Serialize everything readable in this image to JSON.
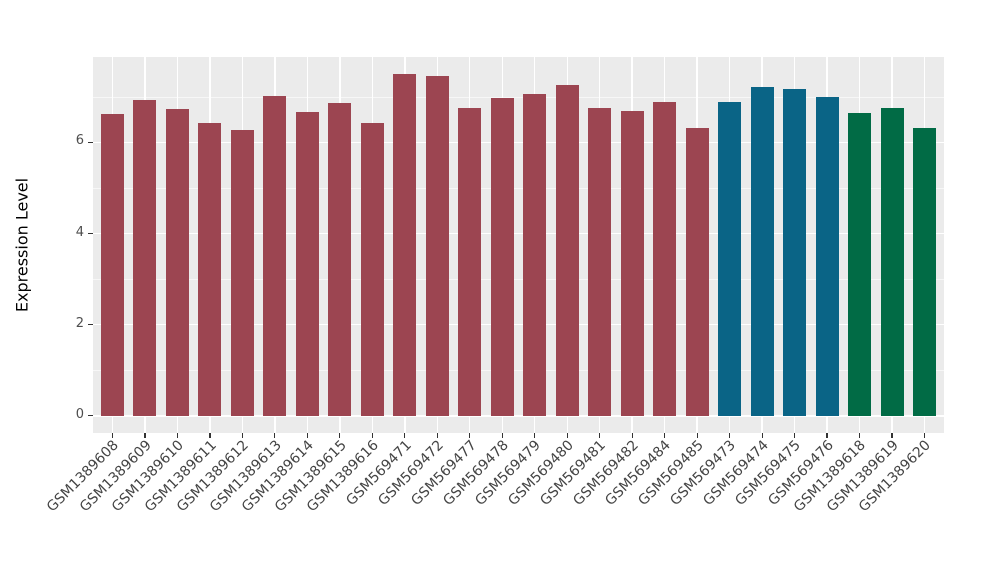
{
  "figure": {
    "background": "#FFFFFF",
    "panel_background": "#EBEBEB",
    "gridline_color": "#FFFFFF",
    "axis_text_color": "#4D4D4D",
    "tick_mark_color": "#333333"
  },
  "chart_data": {
    "type": "bar",
    "title": "",
    "xlabel": "",
    "ylabel": "Expression Level",
    "ylim": [
      0,
      7.9
    ],
    "yticks": [
      0,
      2,
      4,
      6
    ],
    "ytick_labels": [
      "0",
      "2",
      "4",
      "6"
    ],
    "minor_yticks": [
      1,
      3,
      5,
      7
    ],
    "grid": true,
    "legend": false,
    "categories": [
      "GSM1389608",
      "GSM1389609",
      "GSM1389610",
      "GSM1389611",
      "GSM1389612",
      "GSM1389613",
      "GSM1389614",
      "GSM1389615",
      "GSM1389616",
      "GSM569471",
      "GSM569472",
      "GSM569477",
      "GSM569478",
      "GSM569479",
      "GSM569480",
      "GSM569481",
      "GSM569482",
      "GSM569484",
      "GSM569485",
      "GSM569473",
      "GSM569474",
      "GSM569475",
      "GSM569476",
      "GSM1389618",
      "GSM1389619",
      "GSM1389620"
    ],
    "values": [
      6.63,
      6.94,
      6.73,
      6.43,
      6.27,
      7.02,
      6.67,
      6.87,
      6.43,
      7.5,
      7.46,
      6.75,
      6.97,
      7.06,
      7.26,
      6.76,
      6.7,
      6.88,
      6.32,
      6.88,
      7.22,
      7.17,
      7.0,
      6.64,
      6.76,
      6.31
    ],
    "colors": [
      "#9C4551",
      "#9C4551",
      "#9C4551",
      "#9C4551",
      "#9C4551",
      "#9C4551",
      "#9C4551",
      "#9C4551",
      "#9C4551",
      "#9C4551",
      "#9C4551",
      "#9C4551",
      "#9C4551",
      "#9C4551",
      "#9C4551",
      "#9C4551",
      "#9C4551",
      "#9C4551",
      "#9C4551",
      "#0A6486",
      "#0A6486",
      "#0A6486",
      "#0A6486",
      "#016B45",
      "#016B45",
      "#016B45"
    ],
    "group_colors": [
      "#9C4551",
      "#0A6486",
      "#016B45"
    ]
  }
}
